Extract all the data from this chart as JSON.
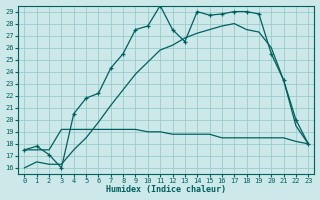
{
  "xlabel": "Humidex (Indice chaleur)",
  "background_color": "#cce8e8",
  "grid_color": "#99cccc",
  "line_color": "#006060",
  "xlim": [
    -0.5,
    23.5
  ],
  "ylim": [
    15.5,
    29.5
  ],
  "xticks": [
    0,
    1,
    2,
    3,
    4,
    5,
    6,
    7,
    8,
    9,
    10,
    11,
    12,
    13,
    14,
    15,
    16,
    17,
    18,
    19,
    20,
    21,
    22,
    23
  ],
  "yticks": [
    16,
    17,
    18,
    19,
    20,
    21,
    22,
    23,
    24,
    25,
    26,
    27,
    28,
    29
  ],
  "line1_x": [
    0,
    1,
    2,
    3,
    4,
    5,
    6,
    7,
    8,
    9,
    10,
    11,
    12,
    13,
    14,
    15,
    16,
    17,
    18,
    19,
    20,
    21,
    22,
    23
  ],
  "line1_y": [
    17.5,
    17.8,
    17.1,
    16.0,
    20.5,
    21.8,
    22.2,
    24.3,
    25.5,
    27.5,
    27.8,
    29.5,
    27.5,
    26.5,
    29.0,
    28.7,
    28.8,
    29.0,
    29.0,
    28.8,
    25.5,
    23.3,
    20.0,
    18.0
  ],
  "line2_x": [
    0,
    1,
    2,
    3,
    4,
    5,
    6,
    7,
    8,
    9,
    10,
    11,
    12,
    13,
    14,
    15,
    16,
    17,
    18,
    19,
    20,
    21,
    22,
    23
  ],
  "line2_y": [
    16.0,
    16.5,
    16.3,
    16.3,
    17.5,
    18.5,
    19.8,
    21.2,
    22.5,
    23.8,
    24.8,
    25.8,
    26.2,
    26.8,
    27.2,
    27.5,
    27.8,
    28.0,
    27.5,
    27.3,
    26.0,
    23.3,
    19.5,
    18.0
  ],
  "line3_x": [
    0,
    1,
    2,
    3,
    4,
    5,
    6,
    7,
    8,
    9,
    10,
    11,
    12,
    13,
    14,
    15,
    16,
    17,
    18,
    19,
    20,
    21,
    22,
    23
  ],
  "line3_y": [
    17.5,
    17.5,
    17.5,
    19.2,
    19.2,
    19.2,
    19.2,
    19.2,
    19.2,
    19.2,
    19.0,
    19.0,
    18.8,
    18.8,
    18.8,
    18.8,
    18.5,
    18.5,
    18.5,
    18.5,
    18.5,
    18.5,
    18.2,
    18.0
  ]
}
